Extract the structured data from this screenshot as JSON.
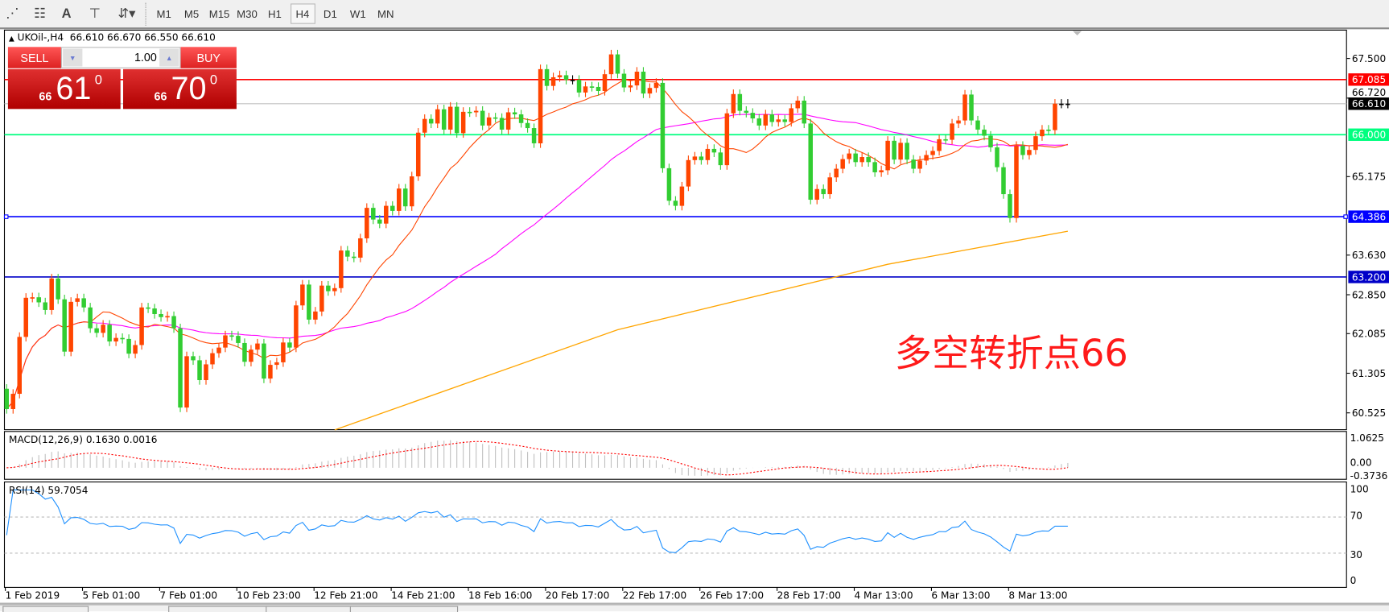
{
  "toolbar": {
    "icons": [
      "elliott-wave-icon",
      "fibonacci-icon",
      "text-icon",
      "text-label-icon",
      "arrows-icon"
    ],
    "timeframes": [
      "M1",
      "M5",
      "M15",
      "M30",
      "H1",
      "H4",
      "D1",
      "W1",
      "MN"
    ],
    "selected_timeframe": "H4"
  },
  "chart": {
    "title": "UKOil-,H4",
    "ohlc": "66.610 66.670 66.550 66.610"
  },
  "trade_panel": {
    "sell_label": "SELL",
    "buy_label": "BUY",
    "lot": "1.00",
    "sell_small": "66",
    "sell_big": "61",
    "sell_sup": "0",
    "buy_small": "66",
    "buy_big": "70",
    "buy_sup": "0"
  },
  "annotation": "多空转折点66",
  "price_axis": [
    "67.500",
    "66.720",
    "65.175",
    "63.630",
    "62.850",
    "62.085",
    "61.305",
    "60.525"
  ],
  "levels": [
    {
      "price": 67.085,
      "label": "67.085",
      "color": "#ff0000"
    },
    {
      "price": 66.61,
      "label": "66.610",
      "color": "#000000",
      "line": "#c0c0c0"
    },
    {
      "price": 66.0,
      "label": "66.000",
      "color": "#00ff7f"
    },
    {
      "price": 64.386,
      "label": "64.386",
      "color": "#0000ff"
    },
    {
      "price": 63.2,
      "label": "63.200",
      "color": "#0000c8"
    }
  ],
  "macd": {
    "title": "MACD(12,26,9) 0.1630 0.0016",
    "axis": [
      "1.0625",
      "0.00",
      "-0.3736"
    ]
  },
  "rsi": {
    "title": "RSI(14) 59.7054",
    "axis": [
      "100",
      "70",
      "30",
      "0"
    ]
  },
  "time_axis": [
    "1 Feb 2019",
    "5 Feb 01:00",
    "7 Feb 01:00",
    "10 Feb 23:00",
    "12 Feb 21:00",
    "14 Feb 21:00",
    "18 Feb 16:00",
    "20 Feb 17:00",
    "22 Feb 17:00",
    "26 Feb 17:00",
    "28 Feb 17:00",
    "4 Mar 13:00",
    "6 Mar 13:00",
    "8 Mar 13:00"
  ],
  "colors": {
    "up": "#ff4500",
    "down": "#32cd32",
    "doji": "#000000",
    "ma_fast": "#ff4500",
    "ma_mid": "#ff00ff",
    "ma_slow": "#ffa500",
    "macd_hist": "#c0c0c0",
    "macd_signal": "#ff0000",
    "rsi": "#1e90ff"
  },
  "chart_data": {
    "type": "candlestick",
    "symbol": "UKOil-",
    "timeframe": "H4",
    "ylim": [
      60.525,
      67.5
    ],
    "first_open": 61.0,
    "close": [
      60.6,
      60.9,
      62.02,
      62.79,
      62.8,
      62.7,
      62.55,
      63.17,
      62.76,
      61.73,
      62.71,
      62.78,
      62.6,
      62.19,
      62.1,
      62.26,
      61.93,
      62.0,
      61.98,
      61.69,
      61.86,
      62.6,
      62.58,
      62.47,
      62.41,
      62.43,
      62.19,
      60.63,
      61.64,
      61.56,
      61.17,
      61.48,
      61.7,
      61.81,
      62.05,
      62.04,
      61.9,
      61.53,
      61.77,
      61.89,
      61.2,
      61.47,
      61.52,
      61.91,
      61.81,
      62.64,
      63.05,
      62.36,
      62.52,
      63.03,
      62.92,
      62.98,
      63.72,
      63.6,
      63.58,
      63.96,
      64.56,
      64.33,
      64.25,
      64.6,
      64.5,
      64.94,
      64.59,
      65.18,
      66.04,
      66.31,
      66.22,
      66.5,
      66.1,
      66.55,
      66.03,
      66.45,
      66.44,
      66.47,
      66.18,
      66.34,
      66.33,
      66.1,
      66.44,
      66.4,
      66.23,
      66.13,
      65.83,
      67.29,
      66.96,
      67.13,
      67.17,
      67.08,
      67.08,
      66.83,
      66.95,
      66.94,
      66.86,
      67.19,
      67.58,
      67.2,
      66.93,
      66.97,
      67.24,
      66.81,
      66.92,
      67.02,
      65.34,
      64.7,
      64.6,
      64.98,
      65.5,
      65.57,
      65.5,
      65.72,
      65.65,
      65.4,
      66.42,
      66.8,
      66.47,
      66.43,
      66.32,
      66.18,
      66.4,
      66.25,
      66.3,
      66.25,
      66.52,
      66.67,
      66.22,
      64.72,
      64.93,
      64.83,
      65.16,
      65.33,
      65.52,
      65.63,
      65.46,
      65.56,
      65.46,
      65.26,
      65.3,
      65.88,
      65.51,
      65.84,
      65.51,
      65.33,
      65.49,
      65.6,
      65.68,
      65.91,
      65.9,
      66.22,
      66.28,
      66.79,
      66.28,
      66.1,
      65.98,
      65.75,
      65.36,
      64.83,
      64.36,
      65.78,
      65.6,
      65.7,
      65.97,
      66.1,
      66.09,
      66.61,
      66.61,
      66.61
    ],
    "ma_slow": [
      [
        51,
        60.19
      ],
      [
        95,
        62.16
      ],
      [
        137,
        63.45
      ],
      [
        165,
        64.1
      ]
    ],
    "macd_ylim": [
      -0.3736,
      1.0625
    ],
    "rsi_ylim": [
      0,
      100
    ],
    "rsi_levels": [
      70,
      30
    ]
  }
}
